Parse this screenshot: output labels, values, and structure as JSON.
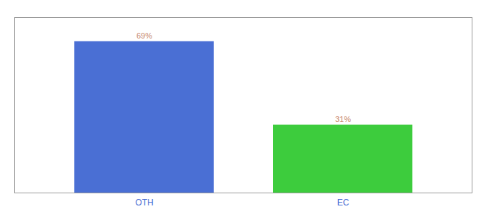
{
  "chart_data": {
    "type": "bar",
    "categories": [
      "OTH",
      "EC"
    ],
    "values": [
      69,
      31
    ],
    "value_labels": [
      "69%",
      "31%"
    ],
    "colors": [
      "#4a6fd4",
      "#3dcc3d"
    ],
    "ylim": [
      0,
      80
    ],
    "data_labels": true,
    "tick_labels": "x",
    "grid": false
  }
}
